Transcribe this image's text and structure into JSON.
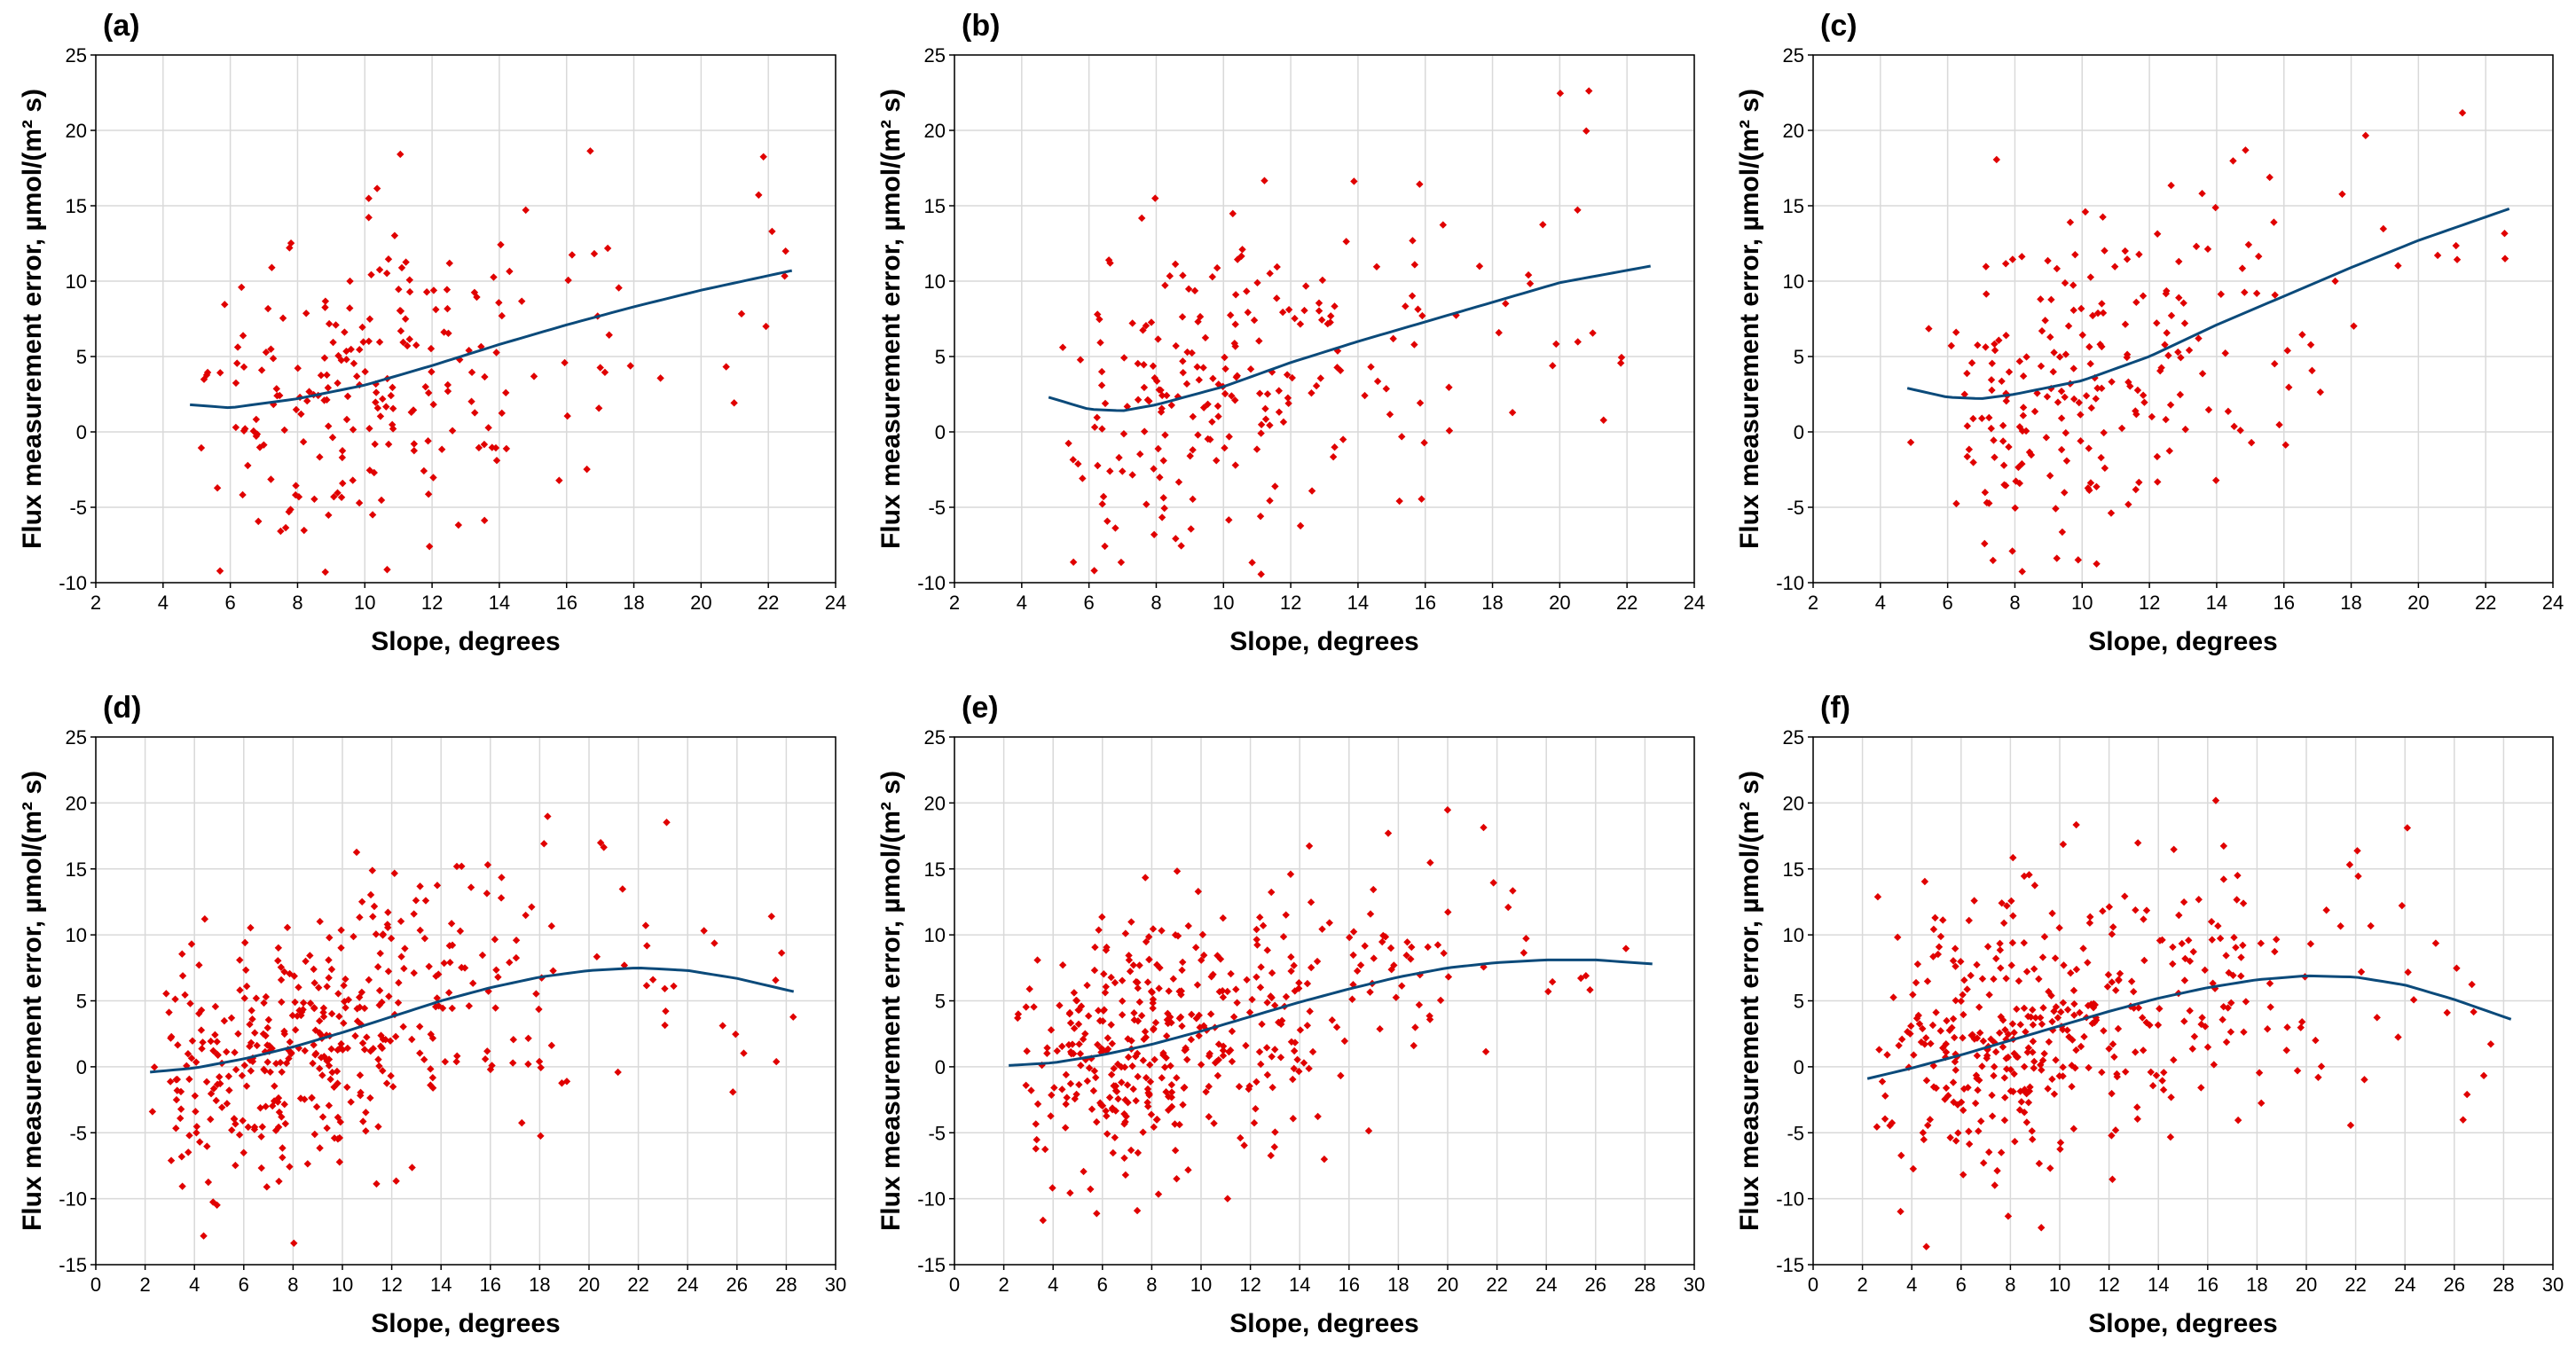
{
  "colors": {
    "points": "#e00000",
    "fit_line": "#0b4a7a",
    "grid": "#d9d9d9"
  },
  "chart_data": [
    {
      "type": "scatter",
      "label": "(a)",
      "xlabel": "Slope, degrees",
      "ylabel": "Flux measurement error, µmol/(m² s)",
      "xlim": [
        2,
        24
      ],
      "ylim": [
        -10,
        25
      ],
      "xticks": [
        2,
        4,
        6,
        8,
        10,
        12,
        14,
        16,
        18,
        20,
        22,
        24
      ],
      "yticks": [
        -10,
        -5,
        0,
        5,
        10,
        15,
        20,
        25
      ],
      "grid": true,
      "n_points": 230,
      "x_range": [
        4.8,
        22.7
      ],
      "seed": 11,
      "fit": {
        "x": [
          4.8,
          6,
          8,
          10,
          12,
          14,
          16,
          18,
          20,
          22.7
        ],
        "y": [
          1.8,
          1.6,
          2.2,
          3.1,
          4.4,
          5.8,
          7.1,
          8.3,
          9.4,
          10.7
        ]
      }
    },
    {
      "type": "scatter",
      "label": "(b)",
      "xlabel": "Slope, degrees",
      "ylabel": "Flux measurement error, µmol/(m² s)",
      "xlim": [
        2,
        24
      ],
      "ylim": [
        -10,
        25
      ],
      "xticks": [
        2,
        4,
        6,
        8,
        10,
        12,
        14,
        16,
        18,
        20,
        22,
        24
      ],
      "yticks": [
        -10,
        -5,
        0,
        5,
        10,
        15,
        20,
        25
      ],
      "grid": true,
      "n_points": 230,
      "x_range": [
        4.8,
        22.7
      ],
      "seed": 23,
      "fit": {
        "x": [
          4.8,
          6,
          7,
          8,
          10,
          12,
          14,
          16,
          18,
          20,
          22.7
        ],
        "y": [
          2.3,
          1.5,
          1.4,
          1.8,
          3.0,
          4.6,
          6.0,
          7.3,
          8.6,
          9.9,
          11.0
        ]
      }
    },
    {
      "type": "scatter",
      "label": "(c)",
      "xlabel": "Slope, degrees",
      "ylabel": "Flux measurement error, µmol/(m² s)",
      "xlim": [
        2,
        24
      ],
      "ylim": [
        -10,
        25
      ],
      "xticks": [
        2,
        4,
        6,
        8,
        10,
        12,
        14,
        16,
        18,
        20,
        22,
        24
      ],
      "yticks": [
        -10,
        -5,
        0,
        5,
        10,
        15,
        20,
        25
      ],
      "grid": true,
      "n_points": 230,
      "x_range": [
        4.8,
        22.7
      ],
      "seed": 37,
      "fit": {
        "x": [
          4.8,
          6,
          7,
          8,
          10,
          12,
          14,
          16,
          18,
          20,
          22.7
        ],
        "y": [
          2.9,
          2.3,
          2.2,
          2.5,
          3.4,
          5.0,
          7.1,
          9.0,
          10.9,
          12.7,
          14.8
        ]
      }
    },
    {
      "type": "scatter",
      "label": "(d)",
      "xlabel": "Slope, degrees",
      "ylabel": "Flux measurement error, µmol/(m² s)",
      "xlim": [
        0,
        30
      ],
      "ylim": [
        -15,
        25
      ],
      "xticks": [
        0,
        2,
        4,
        6,
        8,
        10,
        12,
        14,
        16,
        18,
        20,
        22,
        24,
        26,
        28,
        30
      ],
      "yticks": [
        -15,
        -10,
        -5,
        0,
        5,
        10,
        15,
        20,
        25
      ],
      "grid": true,
      "n_points": 430,
      "x_range": [
        2.2,
        28.3
      ],
      "seed": 41,
      "fit": {
        "x": [
          2.2,
          4,
          6,
          8,
          10,
          12,
          14,
          16,
          18,
          20,
          22,
          24,
          26,
          28.3
        ],
        "y": [
          -0.4,
          -0.1,
          0.6,
          1.5,
          2.6,
          3.8,
          5.0,
          6.0,
          6.8,
          7.3,
          7.5,
          7.3,
          6.7,
          5.7
        ]
      }
    },
    {
      "type": "scatter",
      "label": "(e)",
      "xlabel": "Slope, degrees",
      "ylabel": "Flux measurement error, µmol/(m² s)",
      "xlim": [
        0,
        30
      ],
      "ylim": [
        -15,
        25
      ],
      "xticks": [
        0,
        2,
        4,
        6,
        8,
        10,
        12,
        14,
        16,
        18,
        20,
        22,
        24,
        26,
        28,
        30
      ],
      "yticks": [
        -15,
        -10,
        -5,
        0,
        5,
        10,
        15,
        20,
        25
      ],
      "grid": true,
      "n_points": 430,
      "x_range": [
        2.2,
        28.3
      ],
      "seed": 53,
      "fit": {
        "x": [
          2.2,
          4,
          6,
          8,
          10,
          12,
          14,
          16,
          18,
          20,
          22,
          24,
          26,
          28.3
        ],
        "y": [
          0.1,
          0.3,
          0.9,
          1.7,
          2.7,
          3.8,
          4.9,
          5.9,
          6.8,
          7.5,
          7.9,
          8.1,
          8.1,
          7.8
        ]
      }
    },
    {
      "type": "scatter",
      "label": "(f)",
      "xlabel": "Slope, degrees",
      "ylabel": "Flux measurement error, µmol/(m² s)",
      "xlim": [
        0,
        30
      ],
      "ylim": [
        -15,
        25
      ],
      "xticks": [
        0,
        2,
        4,
        6,
        8,
        10,
        12,
        14,
        16,
        18,
        20,
        22,
        24,
        26,
        28,
        30
      ],
      "yticks": [
        -15,
        -10,
        -5,
        0,
        5,
        10,
        15,
        20,
        25
      ],
      "grid": true,
      "n_points": 430,
      "x_range": [
        2.2,
        28.3
      ],
      "seed": 67,
      "fit": {
        "x": [
          2.2,
          4,
          6,
          8,
          10,
          12,
          14,
          16,
          18,
          20,
          22,
          24,
          26,
          28.3
        ],
        "y": [
          -0.9,
          -0.1,
          0.9,
          2.0,
          3.1,
          4.2,
          5.2,
          6.0,
          6.6,
          6.9,
          6.8,
          6.2,
          5.1,
          3.6
        ]
      }
    }
  ]
}
